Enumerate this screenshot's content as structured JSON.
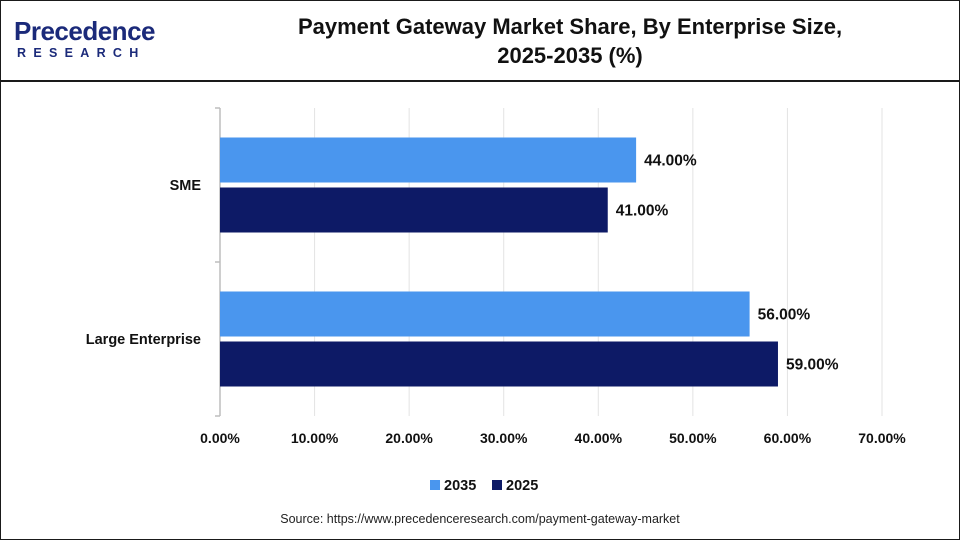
{
  "brand": {
    "logo_word": "Precedence",
    "logo_sub": "RESEARCH",
    "color": "#1b2a7a"
  },
  "title_lines": [
    "Payment Gateway Market Share, By Enterprise Size,",
    "2025-2035 (%)"
  ],
  "source": "Source: https://www.precedenceresearch.com/payment-gateway-market",
  "chart_data": {
    "type": "bar",
    "orientation": "horizontal",
    "title": "Payment Gateway Market Share, By Enterprise Size, 2025-2035 (%)",
    "categories": [
      "SME",
      "Large Enterprise"
    ],
    "series": [
      {
        "name": "2035",
        "color": "#4a96ee",
        "values": [
          44.0,
          56.0
        ],
        "labels": [
          "44.00%",
          "56.00%"
        ]
      },
      {
        "name": "2025",
        "color": "#0d1a66",
        "values": [
          41.0,
          59.0
        ],
        "labels": [
          "41.00%",
          "59.00%"
        ]
      }
    ],
    "xlim": [
      0,
      70
    ],
    "x_ticks": [
      "0.00%",
      "10.00%",
      "20.00%",
      "30.00%",
      "40.00%",
      "50.00%",
      "60.00%",
      "70.00%"
    ],
    "grid": "vertical",
    "legend_position": "bottom",
    "xlabel": "",
    "ylabel": ""
  }
}
